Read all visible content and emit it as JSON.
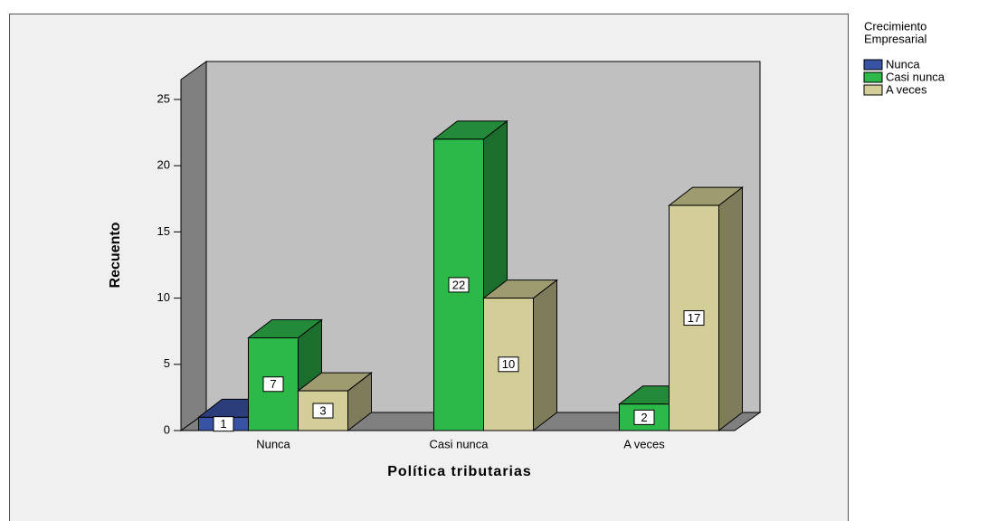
{
  "chart_data": {
    "type": "bar3d",
    "xlabel": "Política tributarias",
    "ylabel": "Recuento",
    "legend_title": [
      "Crecimiento",
      "Empresarial"
    ],
    "legend": "outside-right-top",
    "categories": [
      "Nunca",
      "Casi nunca",
      "A veces"
    ],
    "series": [
      {
        "name": "Nunca",
        "color": "#3953a4",
        "values": [
          1,
          null,
          null
        ]
      },
      {
        "name": "Casi nunca",
        "color": "#2db84a",
        "values": [
          7,
          22,
          2
        ]
      },
      {
        "name": "A veces",
        "color": "#d3ce97",
        "values": [
          3,
          10,
          17
        ]
      }
    ],
    "ylim": [
      0,
      26.5
    ],
    "yticks": [
      0,
      5,
      10,
      15,
      20,
      25
    ],
    "grid": false
  }
}
